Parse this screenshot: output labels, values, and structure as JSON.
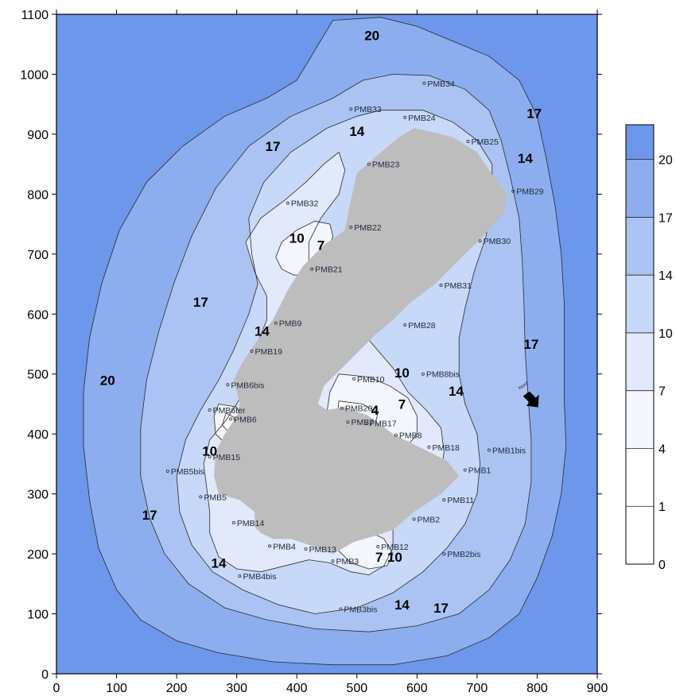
{
  "chart_data": {
    "type": "contour",
    "x_ticks": [
      0,
      100,
      200,
      300,
      400,
      500,
      600,
      700,
      800,
      900
    ],
    "y_ticks": [
      0,
      100,
      200,
      300,
      400,
      500,
      600,
      700,
      800,
      900,
      1000,
      1100
    ],
    "xlim": [
      0,
      900
    ],
    "ylim": [
      0,
      1100
    ],
    "grid": false,
    "legend_placement": "right",
    "contour_levels": [
      0,
      1,
      4,
      7,
      10,
      14,
      17,
      20
    ],
    "level_colors": [
      "#ffffff",
      "#ffffff",
      "#f3f6fd",
      "#e1e9fb",
      "#c8d8f8",
      "#aac3f3",
      "#8caeee",
      "#6c97ea"
    ],
    "obstacle_color": "#bdbdbd",
    "contour_labels": [
      {
        "text": "20",
        "x": 525,
        "y": 1065
      },
      {
        "text": "17",
        "x": 795,
        "y": 935
      },
      {
        "text": "17",
        "x": 360,
        "y": 880
      },
      {
        "text": "14",
        "x": 500,
        "y": 905
      },
      {
        "text": "14",
        "x": 780,
        "y": 860
      },
      {
        "text": "10",
        "x": 400,
        "y": 727
      },
      {
        "text": "7",
        "x": 440,
        "y": 715
      },
      {
        "text": "17",
        "x": 240,
        "y": 620
      },
      {
        "text": "14",
        "x": 342,
        "y": 572
      },
      {
        "text": "20",
        "x": 85,
        "y": 490
      },
      {
        "text": "10",
        "x": 575,
        "y": 502
      },
      {
        "text": "14",
        "x": 665,
        "y": 472
      },
      {
        "text": "17",
        "x": 790,
        "y": 550
      },
      {
        "text": "7",
        "x": 575,
        "y": 450
      },
      {
        "text": "4",
        "x": 530,
        "y": 440
      },
      {
        "text": "10",
        "x": 255,
        "y": 372
      },
      {
        "text": "17",
        "x": 155,
        "y": 265
      },
      {
        "text": "14",
        "x": 270,
        "y": 185
      },
      {
        "text": "7",
        "x": 537,
        "y": 195
      },
      {
        "text": "10",
        "x": 563,
        "y": 195
      },
      {
        "text": "14",
        "x": 575,
        "y": 115
      },
      {
        "text": "17",
        "x": 640,
        "y": 110
      }
    ],
    "wells": [
      {
        "name": "PMB34",
        "x": 612,
        "y": 985
      },
      {
        "name": "PMB33",
        "x": 490,
        "y": 942
      },
      {
        "name": "PMB24",
        "x": 580,
        "y": 928
      },
      {
        "name": "PMB25",
        "x": 685,
        "y": 888
      },
      {
        "name": "PMB23",
        "x": 520,
        "y": 850
      },
      {
        "name": "PMB29",
        "x": 760,
        "y": 805
      },
      {
        "name": "PMB32",
        "x": 385,
        "y": 785
      },
      {
        "name": "PMB22",
        "x": 490,
        "y": 745
      },
      {
        "name": "PMB30",
        "x": 705,
        "y": 722
      },
      {
        "name": "PMB21",
        "x": 425,
        "y": 675
      },
      {
        "name": "PMB31",
        "x": 640,
        "y": 648
      },
      {
        "name": "PMB9",
        "x": 365,
        "y": 585
      },
      {
        "name": "PMB28",
        "x": 580,
        "y": 582
      },
      {
        "name": "PMB19",
        "x": 325,
        "y": 538
      },
      {
        "name": "PMB8bis",
        "x": 610,
        "y": 500
      },
      {
        "name": "PMB10",
        "x": 495,
        "y": 492
      },
      {
        "name": "PMB6bis",
        "x": 285,
        "y": 482
      },
      {
        "name": "PMB20",
        "x": 475,
        "y": 443
      },
      {
        "name": "PMB6ter",
        "x": 255,
        "y": 440
      },
      {
        "name": "PMB7",
        "x": 485,
        "y": 420
      },
      {
        "name": "PMB17",
        "x": 515,
        "y": 418
      },
      {
        "name": "PMB6",
        "x": 290,
        "y": 425
      },
      {
        "name": "PMB8",
        "x": 565,
        "y": 398
      },
      {
        "name": "PMB18",
        "x": 620,
        "y": 378
      },
      {
        "name": "PMB1bis",
        "x": 720,
        "y": 373
      },
      {
        "name": "PMB15",
        "x": 255,
        "y": 362
      },
      {
        "name": "PMB1",
        "x": 680,
        "y": 340
      },
      {
        "name": "PMB5bis",
        "x": 185,
        "y": 338
      },
      {
        "name": "PMB5",
        "x": 240,
        "y": 295
      },
      {
        "name": "PMB11",
        "x": 645,
        "y": 290
      },
      {
        "name": "PMB2",
        "x": 595,
        "y": 258
      },
      {
        "name": "PMB14",
        "x": 295,
        "y": 252
      },
      {
        "name": "PMB4",
        "x": 355,
        "y": 213
      },
      {
        "name": "PMB12",
        "x": 535,
        "y": 212
      },
      {
        "name": "PMB13",
        "x": 415,
        "y": 208
      },
      {
        "name": "PMB2bis",
        "x": 645,
        "y": 200
      },
      {
        "name": "PMB3",
        "x": 460,
        "y": 188
      },
      {
        "name": "PMB4bis",
        "x": 305,
        "y": 163
      },
      {
        "name": "PMB3bis",
        "x": 473,
        "y": 108
      }
    ],
    "north_arrow": {
      "label": "Nord",
      "x": 795,
      "y": 455
    }
  }
}
